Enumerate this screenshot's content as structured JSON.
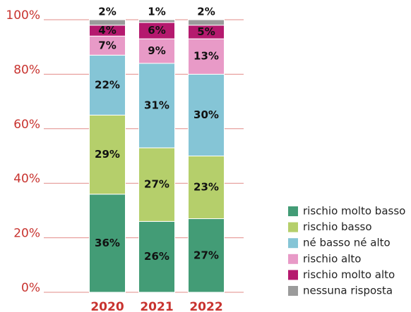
{
  "chart_data": {
    "type": "stacked_bar",
    "categories": [
      "2020",
      "2021",
      "2022"
    ],
    "series": [
      {
        "name": "rischio molto basso",
        "color": "#439c76",
        "values": [
          36,
          26,
          27
        ],
        "value_labels": [
          "36%",
          "26%",
          "27%"
        ]
      },
      {
        "name": "rischio basso",
        "color": "#b5cf6b",
        "values": [
          29,
          27,
          23
        ],
        "value_labels": [
          "29%",
          "27%",
          "23%"
        ]
      },
      {
        "name": "né basso né alto",
        "color": "#85c5d6",
        "values": [
          22,
          31,
          30
        ],
        "value_labels": [
          "22%",
          "31%",
          "30%"
        ]
      },
      {
        "name": "rischio alto",
        "color": "#e89ac7",
        "values": [
          7,
          9,
          13
        ],
        "value_labels": [
          "7%",
          "9%",
          "13%"
        ]
      },
      {
        "name": "rischio molto alto",
        "color": "#b5196e",
        "values": [
          4,
          6,
          5
        ],
        "value_labels": [
          "4%",
          "6%",
          "5%"
        ]
      },
      {
        "name": "nessuna risposta",
        "color": "#9b9b9b",
        "values": [
          2,
          1,
          2
        ],
        "value_labels": [
          "2%",
          "1%",
          "2%"
        ]
      }
    ],
    "ylim": [
      0,
      100
    ],
    "yticks": [
      {
        "value": 0,
        "label": "0%"
      },
      {
        "value": 20,
        "label": "20%"
      },
      {
        "value": 40,
        "label": "40%"
      },
      {
        "value": 60,
        "label": "60%"
      },
      {
        "value": 80,
        "label": "80%"
      },
      {
        "value": 100,
        "label": "100%"
      }
    ],
    "grid": true
  }
}
